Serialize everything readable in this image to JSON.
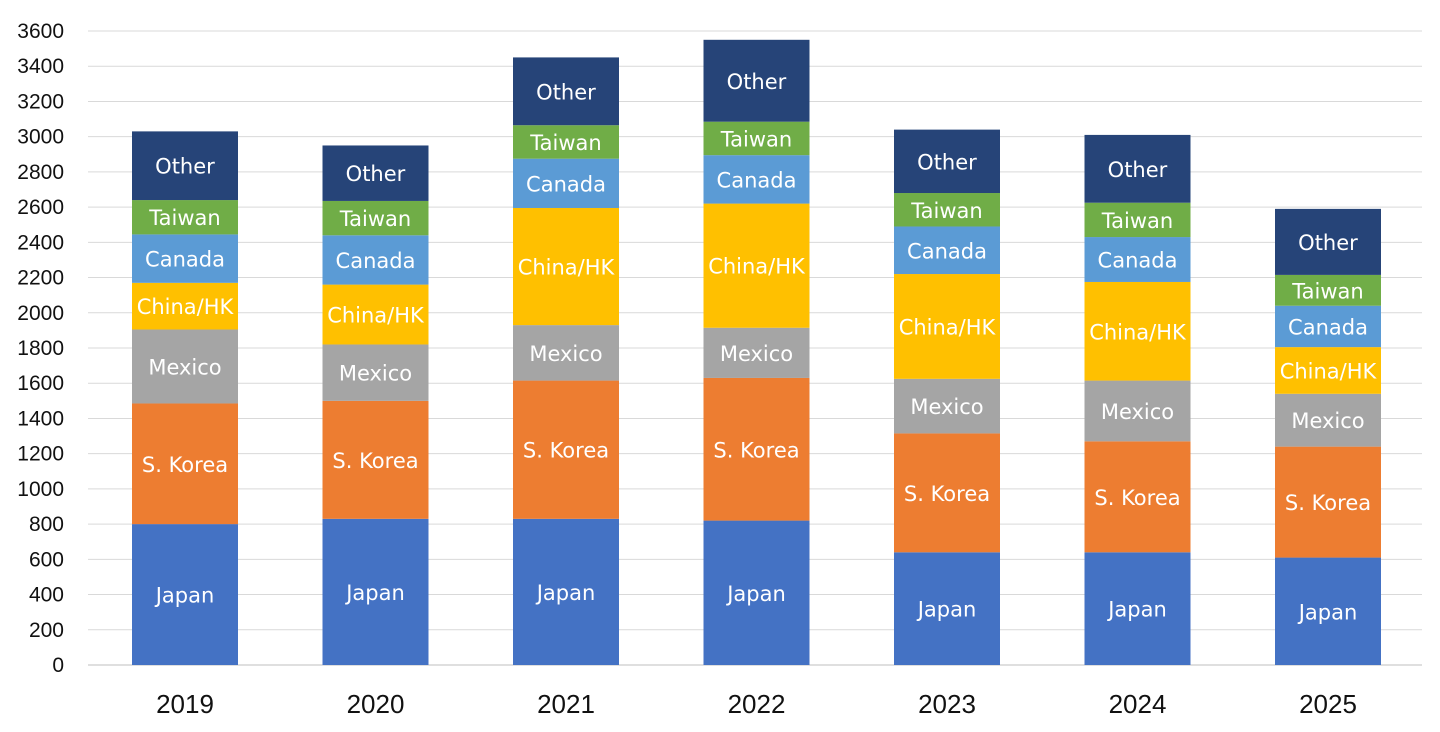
{
  "chart_data": {
    "type": "bar",
    "stacked": true,
    "title": "",
    "xlabel": "",
    "ylabel": "",
    "ylim": [
      0,
      3600
    ],
    "yticks": [
      0,
      200,
      400,
      600,
      800,
      1000,
      1200,
      1400,
      1600,
      1800,
      2000,
      2200,
      2400,
      2600,
      2800,
      3000,
      3200,
      3400,
      3600
    ],
    "grid": true,
    "legend": "none (series labeled inside bars)",
    "categories": [
      "2019",
      "2020",
      "2021",
      "2022",
      "2023",
      "2024",
      "2025"
    ],
    "series": [
      {
        "name": "Japan",
        "color": "#4472C4",
        "values": [
          800,
          830,
          830,
          820,
          640,
          640,
          610
        ]
      },
      {
        "name": "S. Korea",
        "color": "#ED7D31",
        "values": [
          685,
          670,
          785,
          810,
          675,
          630,
          630
        ]
      },
      {
        "name": "Mexico",
        "color": "#A5A5A5",
        "values": [
          420,
          320,
          315,
          285,
          310,
          345,
          300
        ]
      },
      {
        "name": "China/HK",
        "color": "#FFC000",
        "values": [
          265,
          340,
          665,
          705,
          595,
          560,
          265
        ]
      },
      {
        "name": "Canada",
        "color": "#5B9BD5",
        "values": [
          275,
          280,
          280,
          275,
          270,
          255,
          235
        ]
      },
      {
        "name": "Taiwan",
        "color": "#70AD47",
        "values": [
          195,
          195,
          190,
          190,
          190,
          195,
          175
        ]
      },
      {
        "name": "Other",
        "color": "#264478",
        "values": [
          390,
          315,
          385,
          465,
          360,
          385,
          375
        ]
      }
    ]
  }
}
